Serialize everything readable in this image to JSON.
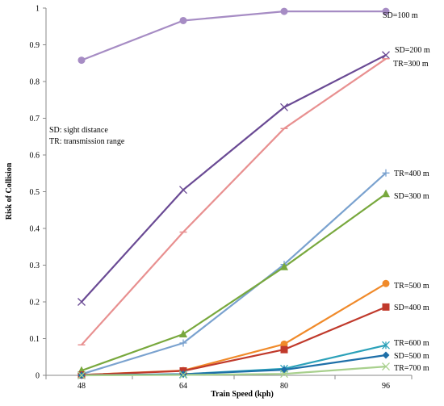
{
  "chart_data": {
    "type": "line",
    "title": "",
    "xlabel": "Train Speed (kph)",
    "ylabel": "Risk of Collision",
    "x": [
      48,
      64,
      80,
      96
    ],
    "ylim": [
      0,
      1
    ],
    "yticks": [
      "0",
      "0.1",
      "0.2",
      "0.3",
      "0.4",
      "0.5",
      "0.6",
      "0.7",
      "0.8",
      "0.9",
      "1"
    ],
    "xticks": [
      "48",
      "64",
      "80",
      "96"
    ],
    "grid": false,
    "legend": "none",
    "notes": [
      "SD: sight distance",
      "TR: transmission range"
    ],
    "series": [
      {
        "name": "SD=100 m",
        "values": [
          0.858,
          0.966,
          0.991,
          0.991
        ],
        "color": "#a68cc4",
        "marker": "circle"
      },
      {
        "name": "SD=200 m",
        "values": [
          0.2,
          0.505,
          0.73,
          0.872
        ],
        "color": "#6a4a94",
        "marker": "x"
      },
      {
        "name": "TR=300 m",
        "values": [
          0.083,
          0.39,
          0.672,
          0.862
        ],
        "color": "#e89090",
        "marker": "dash"
      },
      {
        "name": "TR=400 m",
        "values": [
          0.003,
          0.088,
          0.302,
          0.551
        ],
        "color": "#7aa2cf",
        "marker": "plus"
      },
      {
        "name": "SD=300 m",
        "values": [
          0.013,
          0.112,
          0.295,
          0.494
        ],
        "color": "#78a83d",
        "marker": "triangle"
      },
      {
        "name": "TR=500 m",
        "values": [
          0.001,
          0.013,
          0.085,
          0.25
        ],
        "color": "#f08a2a",
        "marker": "circle"
      },
      {
        "name": "SD=400 m",
        "values": [
          0.001,
          0.012,
          0.07,
          0.186
        ],
        "color": "#c0392b",
        "marker": "square"
      },
      {
        "name": "TR=600 m",
        "values": [
          0.0,
          0.003,
          0.018,
          0.082
        ],
        "color": "#2ba1b9",
        "marker": "asterisk"
      },
      {
        "name": "SD=500 m",
        "values": [
          0.0,
          0.003,
          0.015,
          0.055
        ],
        "color": "#1e6fa8",
        "marker": "diamond"
      },
      {
        "name": "TR=700 m",
        "values": [
          0.0,
          0.001,
          0.004,
          0.024
        ],
        "color": "#a8d08d",
        "marker": "x"
      }
    ]
  }
}
